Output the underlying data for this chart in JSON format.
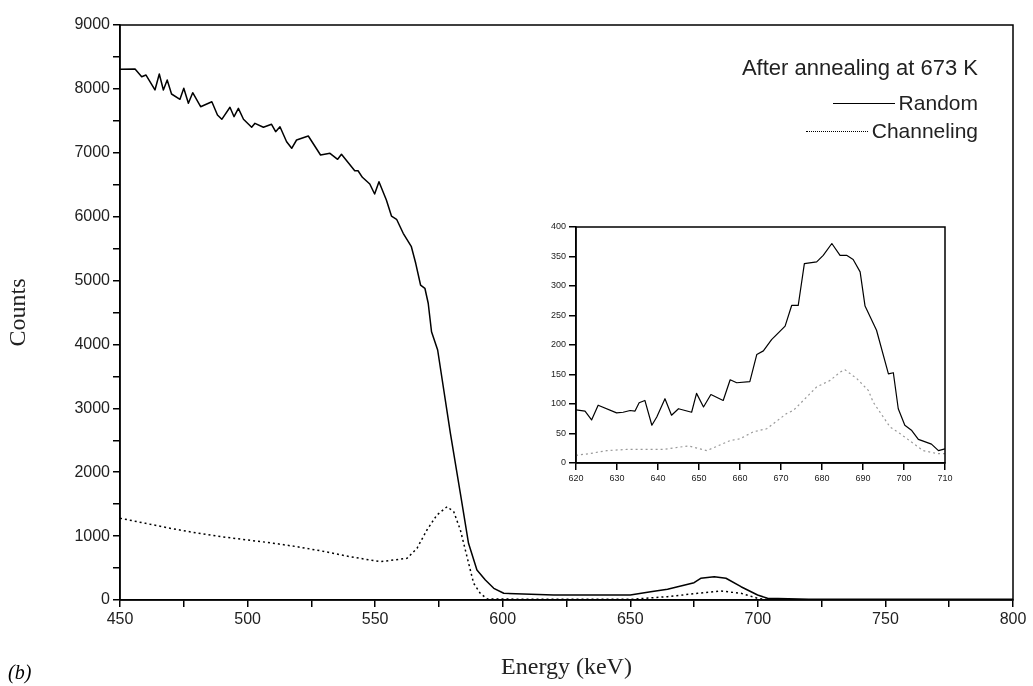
{
  "chart_data": [
    {
      "type": "line",
      "xlabel": "Energy (keV)",
      "ylabel": "Counts",
      "legend": "top right",
      "legend_title": "After annealing at 673 K",
      "annotations": [
        "(b)"
      ],
      "xlim": [
        450,
        800
      ],
      "ylim": [
        0,
        9000
      ],
      "xticks": [
        450,
        {
          "value": 475,
          "label": null
        },
        500,
        {
          "value": 525,
          "label": null
        },
        550,
        {
          "value": 575,
          "label": null
        },
        600,
        {
          "value": 625,
          "label": null
        },
        650,
        {
          "value": 675,
          "label": null
        },
        700,
        {
          "value": 725,
          "label": null
        },
        750,
        {
          "value": 775,
          "label": null
        },
        800
      ],
      "yticks": [
        0,
        {
          "value": 500,
          "label": null
        },
        1000,
        {
          "value": 1500,
          "label": null
        },
        2000,
        {
          "value": 2500,
          "label": null
        },
        3000,
        {
          "value": 3500,
          "label": null
        },
        4000,
        {
          "value": 4500,
          "label": null
        },
        5000,
        {
          "value": 5500,
          "label": null
        },
        6000,
        {
          "value": 6500,
          "label": null
        },
        7000,
        {
          "value": 7500,
          "label": null
        },
        8000,
        {
          "value": 8500,
          "label": null
        },
        9000
      ],
      "series": [
        {
          "name": "Random",
          "color": "#000000",
          "line_style": "solid",
          "x": [
            450,
            455.9,
            458.5,
            460.2,
            463.7,
            465.4,
            467,
            468.5,
            470.2,
            473.5,
            475,
            476.8,
            478.5,
            481.6,
            486,
            488.2,
            489.9,
            493.1,
            494.7,
            496.4,
            498.4,
            501.6,
            502.9,
            506.2,
            509.4,
            511,
            512.7,
            515.3,
            517.3,
            519.2,
            523.8,
            528.6,
            532.3,
            535.3,
            536.8,
            542,
            543.3,
            545,
            547.9,
            549.8,
            551.5,
            554.4,
            556.4,
            558.4,
            561,
            564.2,
            565.9,
            567.8,
            569.5,
            570.8,
            572.1,
            574.5,
            579.5,
            583.4,
            586.6,
            589.9,
            593.2,
            596.5,
            600.4,
            620,
            640,
            650,
            658,
            664.6,
            675,
            677.6,
            682.9,
            687.5,
            693.4,
            699.9,
            703.8,
            720,
            760,
            800
          ],
          "values": [
            8306,
            8311,
            8191,
            8217,
            7983,
            8233,
            7983,
            8139,
            7920,
            7837,
            8009,
            7774,
            7940,
            7721,
            7799,
            7591,
            7524,
            7712,
            7565,
            7696,
            7524,
            7399,
            7461,
            7399,
            7446,
            7330,
            7408,
            7173,
            7070,
            7200,
            7263,
            6965,
            6992,
            6898,
            6976,
            6719,
            6719,
            6616,
            6511,
            6355,
            6547,
            6261,
            6010,
            5959,
            5740,
            5530,
            5270,
            4930,
            4879,
            4645,
            4199,
            3913,
            2609,
            1670,
            887,
            470,
            313,
            183,
            105,
            80,
            80,
            80,
            130,
            167,
            271,
            340,
            365,
            340,
            208,
            78,
            27,
            10,
            10,
            10
          ]
        },
        {
          "name": "Channeling",
          "color": "#000000",
          "line_style": "dotted",
          "x": [
            450,
            460,
            470,
            480,
            490,
            500,
            510,
            520,
            530,
            540.2,
            552,
            562.5,
            566.4,
            570.3,
            574.2,
            578.2,
            580.8,
            583.4,
            586,
            588.6,
            591.2,
            593.9,
            620,
            650,
            664.6,
            676.4,
            685.5,
            693.4,
            699.9,
            705,
            750,
            800
          ],
          "values": [
            1280,
            1200,
            1120,
            1050,
            990,
            940,
            890,
            830,
            760,
            678,
            600,
            652,
            809,
            1096,
            1330,
            1460,
            1382,
            1096,
            678,
            261,
            105,
            16,
            10,
            10,
            52,
            105,
            141,
            105,
            27,
            0,
            0,
            0
          ]
        }
      ]
    },
    {
      "type": "line",
      "xlim": [
        620,
        710
      ],
      "ylim": [
        0,
        400
      ],
      "xticks": [
        620,
        630,
        640,
        650,
        660,
        670,
        680,
        690,
        700,
        710
      ],
      "yticks": [
        0,
        50,
        100,
        150,
        200,
        250,
        300,
        350,
        400
      ],
      "series": [
        {
          "color": "#000000",
          "line_style": "solid",
          "x": [
            620,
            622.2,
            623.8,
            625.4,
            629.9,
            631.5,
            633.2,
            634.4,
            635.4,
            636.8,
            638.5,
            639.7,
            641.7,
            643.3,
            645,
            648.2,
            649.4,
            651.1,
            652.9,
            655.9,
            657.6,
            659.2,
            662.4,
            664.1,
            665.7,
            667.7,
            671,
            672.6,
            674.2,
            675.7,
            678.7,
            680.3,
            682.4,
            684.4,
            686,
            687.6,
            689.3,
            690.5,
            693.3,
            696.2,
            697.4,
            698.6,
            700.2,
            701.9,
            703.5,
            704.7,
            706.7,
            708.4,
            710
          ],
          "values": [
            90,
            88,
            73,
            98,
            85,
            86,
            89,
            88,
            102,
            106,
            64,
            78,
            109,
            81,
            92,
            86,
            118,
            95,
            116,
            106,
            141,
            136,
            138,
            184,
            190,
            209,
            232,
            267,
            267,
            338,
            341,
            352,
            372,
            352,
            352,
            345,
            324,
            266,
            225,
            151,
            153,
            92,
            64,
            55,
            40,
            37,
            32,
            21,
            24
          ]
        },
        {
          "color": "#999999",
          "line_style": "dotted",
          "x": [
            620,
            623.4,
            627.5,
            632.4,
            635.6,
            641.3,
            645.4,
            647.4,
            651.9,
            657.6,
            660,
            663.3,
            666.5,
            671.4,
            673,
            676.3,
            678.7,
            682,
            684.4,
            685.6,
            688.5,
            691.3,
            692.5,
            696.6,
            699,
            702.3,
            704.7,
            708,
            710
          ],
          "values": [
            13,
            16,
            21,
            23,
            23,
            23,
            27,
            29,
            21,
            38,
            41,
            53,
            58,
            84,
            89,
            112,
            129,
            140,
            154,
            158,
            143,
            123,
            103,
            61,
            50,
            33,
            21,
            16,
            16
          ]
        }
      ]
    }
  ]
}
